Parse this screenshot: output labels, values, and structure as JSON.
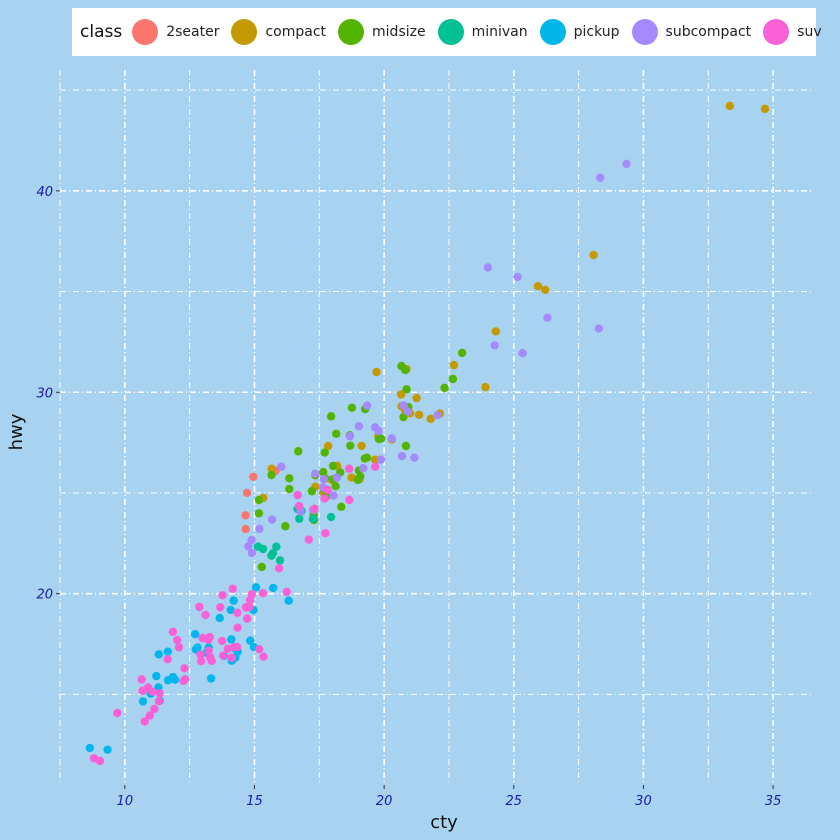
{
  "chart_data": {
    "type": "scatter",
    "xlabel": "cty",
    "ylabel": "hwy",
    "xlim": [
      7.5,
      36.5
    ],
    "ylim": [
      10.5,
      46
    ],
    "xticks": [
      10,
      15,
      20,
      25,
      30,
      35
    ],
    "yticks": [
      20,
      30,
      40
    ],
    "grid": true,
    "legend": {
      "title": "class",
      "position": "top"
    },
    "series": [
      {
        "name": "2seater",
        "color": "#f8766d",
        "points": [
          [
            15,
            26
          ],
          [
            16,
            26
          ],
          [
            15,
            25
          ],
          [
            15,
            24
          ],
          [
            15,
            23
          ]
        ]
      },
      {
        "name": "compact",
        "color": "#c49a00",
        "points": [
          [
            18,
            29
          ],
          [
            21,
            29
          ],
          [
            20,
            31
          ],
          [
            21,
            30
          ],
          [
            16,
            26
          ],
          [
            18,
            26
          ],
          [
            18,
            27
          ],
          [
            18,
            26
          ],
          [
            19,
            27
          ],
          [
            21,
            30
          ],
          [
            33,
            44
          ],
          [
            21,
            29
          ],
          [
            24,
            33
          ],
          [
            26,
            35
          ],
          [
            28,
            37
          ],
          [
            26,
            35
          ],
          [
            22,
            29
          ],
          [
            23,
            31
          ],
          [
            20,
            27
          ],
          [
            21,
            29
          ],
          [
            19,
            26
          ],
          [
            21,
            31
          ],
          [
            21,
            29
          ],
          [
            22,
            29
          ],
          [
            17,
            24
          ],
          [
            15,
            25
          ],
          [
            17,
            25
          ],
          [
            20,
            28
          ],
          [
            18,
            26
          ],
          [
            19,
            26
          ],
          [
            24,
            30
          ],
          [
            20,
            28
          ],
          [
            35,
            44
          ],
          [
            18,
            25
          ]
        ]
      },
      {
        "name": "midsize",
        "color": "#53b400",
        "points": [
          [
            18,
            29
          ],
          [
            21,
            31
          ],
          [
            18,
            27
          ],
          [
            16,
            26
          ],
          [
            18,
            25
          ],
          [
            18,
            26
          ],
          [
            21,
            27
          ],
          [
            19,
            26
          ],
          [
            18,
            25
          ],
          [
            19,
            27
          ],
          [
            22,
            30
          ],
          [
            17,
            26
          ],
          [
            18,
            26
          ],
          [
            17,
            25
          ],
          [
            19,
            26
          ],
          [
            21,
            29
          ],
          [
            20,
            28
          ],
          [
            19,
            27
          ],
          [
            23,
            31
          ],
          [
            21,
            31
          ],
          [
            21,
            29
          ],
          [
            21,
            30
          ],
          [
            23,
            32
          ],
          [
            18,
            28
          ],
          [
            19,
            29
          ],
          [
            19,
            27
          ],
          [
            18,
            24
          ],
          [
            17,
            24
          ],
          [
            16,
            23
          ],
          [
            18,
            26
          ],
          [
            21,
            29
          ],
          [
            18,
            25
          ],
          [
            17,
            27
          ],
          [
            18,
            26
          ],
          [
            19,
            28
          ],
          [
            19,
            29
          ],
          [
            20,
            28
          ],
          [
            18,
            26
          ],
          [
            15,
            25
          ],
          [
            15,
            21
          ],
          [
            16,
            26
          ],
          [
            16,
            25
          ],
          [
            17,
            24
          ],
          [
            15,
            24
          ],
          [
            19,
            26
          ]
        ]
      },
      {
        "name": "minivan",
        "color": "#00c094",
        "points": [
          [
            18,
            24
          ],
          [
            17,
            24
          ],
          [
            16,
            22
          ],
          [
            16,
            22
          ],
          [
            17,
            24
          ],
          [
            17,
            24
          ],
          [
            16,
            22
          ],
          [
            16,
            22
          ],
          [
            15,
            22
          ],
          [
            17,
            24
          ],
          [
            15,
            22
          ]
        ]
      },
      {
        "name": "pickup",
        "color": "#00b6eb",
        "points": [
          [
            15,
            20
          ],
          [
            14,
            20
          ],
          [
            11,
            15
          ],
          [
            11,
            15
          ],
          [
            9,
            12
          ],
          [
            14,
            17
          ],
          [
            13,
            17
          ],
          [
            11,
            15
          ],
          [
            12,
            16
          ],
          [
            13,
            17
          ],
          [
            12,
            16
          ],
          [
            9,
            12
          ],
          [
            11,
            15
          ],
          [
            13,
            17
          ],
          [
            12,
            16
          ],
          [
            14,
            19
          ],
          [
            11,
            16
          ],
          [
            11,
            17
          ],
          [
            14,
            17
          ],
          [
            13,
            16
          ],
          [
            14,
            17
          ],
          [
            14,
            17
          ],
          [
            15,
            17
          ],
          [
            15,
            18
          ],
          [
            16,
            20
          ],
          [
            14,
            19
          ],
          [
            12,
            17
          ],
          [
            13,
            18
          ],
          [
            14,
            17
          ],
          [
            15,
            19
          ],
          [
            14,
            18
          ],
          [
            13,
            17
          ],
          [
            16,
            20
          ]
        ]
      },
      {
        "name": "subcompact",
        "color": "#a58aff",
        "points": [
          [
            24,
            36
          ],
          [
            25,
            36
          ],
          [
            24,
            32
          ],
          [
            28,
            41
          ],
          [
            29,
            41
          ],
          [
            26,
            34
          ],
          [
            19,
            26
          ],
          [
            22,
            29
          ],
          [
            21,
            29
          ],
          [
            20,
            28
          ],
          [
            21,
            27
          ],
          [
            20,
            28
          ],
          [
            18,
            26
          ],
          [
            21,
            29
          ],
          [
            20,
            27
          ],
          [
            19,
            28
          ],
          [
            21,
            27
          ],
          [
            28,
            33
          ],
          [
            25,
            32
          ],
          [
            17,
            26
          ],
          [
            17,
            24
          ],
          [
            18,
            26
          ],
          [
            16,
            26
          ],
          [
            15,
            23
          ],
          [
            15,
            22
          ],
          [
            16,
            24
          ],
          [
            18,
            25
          ],
          [
            19,
            28
          ],
          [
            17,
            24
          ],
          [
            15,
            22
          ],
          [
            18,
            25
          ],
          [
            15,
            23
          ],
          [
            20,
            28
          ],
          [
            19,
            29
          ]
        ]
      },
      {
        "name": "suv",
        "color": "#fb61d7",
        "points": [
          [
            15,
            20
          ],
          [
            14,
            20
          ],
          [
            11,
            15
          ],
          [
            12,
            17
          ],
          [
            14,
            19
          ],
          [
            11,
            14
          ],
          [
            11,
            15
          ],
          [
            9,
            12
          ],
          [
            15,
            17
          ],
          [
            13,
            17
          ],
          [
            11,
            15
          ],
          [
            14,
            19
          ],
          [
            13,
            18
          ],
          [
            14,
            20
          ],
          [
            12,
            18
          ],
          [
            13,
            19
          ],
          [
            14,
            18
          ],
          [
            15,
            19
          ],
          [
            11,
            16
          ],
          [
            11,
            15
          ],
          [
            14,
            17
          ],
          [
            13,
            17
          ],
          [
            11,
            15
          ],
          [
            13,
            18
          ],
          [
            12,
            16
          ],
          [
            13,
            17
          ],
          [
            14,
            17
          ],
          [
            12,
            16
          ],
          [
            11,
            14
          ],
          [
            13,
            18
          ],
          [
            12,
            18
          ],
          [
            18,
            23
          ],
          [
            17,
            25
          ],
          [
            19,
            26
          ],
          [
            18,
            25
          ],
          [
            15,
            19
          ],
          [
            13,
            17
          ],
          [
            12,
            17
          ],
          [
            13,
            18
          ],
          [
            17,
            24
          ],
          [
            15,
            17
          ],
          [
            15,
            20
          ],
          [
            16,
            20
          ],
          [
            14,
            17
          ],
          [
            14,
            17
          ],
          [
            15,
            20
          ],
          [
            17,
            24
          ],
          [
            19,
            25
          ],
          [
            20,
            26
          ],
          [
            15,
            19
          ],
          [
            18,
            25
          ],
          [
            11,
            14
          ],
          [
            13,
            19
          ],
          [
            13,
            17
          ],
          [
            12,
            16
          ],
          [
            14,
            18
          ],
          [
            11,
            15
          ],
          [
            14,
            17
          ],
          [
            17,
            23
          ],
          [
            16,
            21
          ],
          [
            9,
            12
          ],
          [
            10,
            14
          ]
        ]
      }
    ]
  }
}
